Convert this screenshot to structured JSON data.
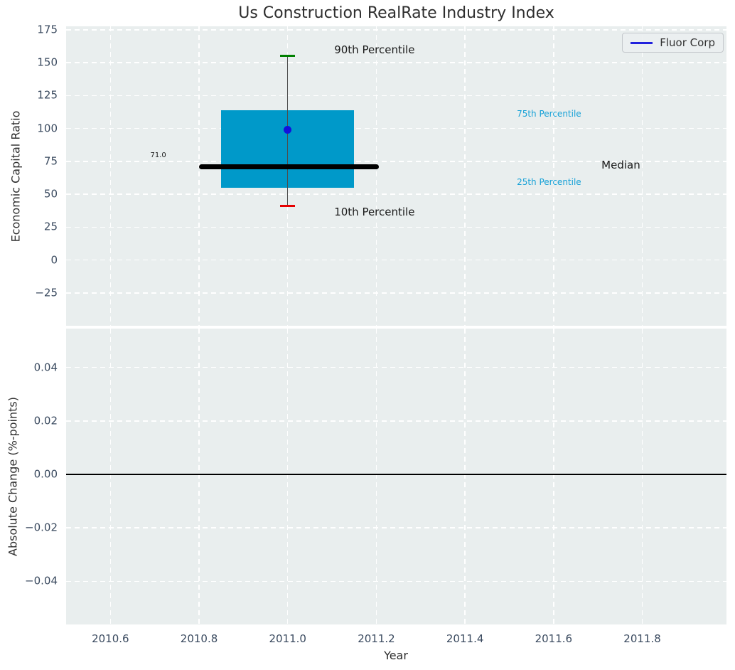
{
  "chart_data": {
    "type": "box",
    "title": "Us Construction RealRate Industry Index",
    "legend": {
      "label": "Fluor Corp",
      "position": "upper right"
    },
    "x_axis": {
      "label": "Year",
      "xlim": [
        2010.5,
        2011.99
      ],
      "tick_values": [
        2010.6,
        2010.8,
        2011.0,
        2011.2,
        2011.4,
        2011.6,
        2011.8
      ],
      "tick_labels": [
        "2010.6",
        "2010.8",
        "2011.0",
        "2011.2",
        "2011.4",
        "2011.6",
        "2011.8"
      ],
      "grid": "white dashed"
    },
    "top_plot": {
      "ylabel": "Economic Capital Ratio",
      "ylim": [
        -50,
        177.7
      ],
      "tick_values": [
        175,
        150,
        125,
        100,
        75,
        50,
        25,
        0,
        -25
      ],
      "tick_labels": [
        "175",
        "150",
        "125",
        "100",
        "75",
        "50",
        "25",
        "0",
        "−25"
      ],
      "box": {
        "x_center": 2011.0,
        "x_left": 2010.85,
        "x_right": 2011.15,
        "p10": 41,
        "p25": 55,
        "median": 71.0,
        "p75": 114,
        "p90": 155,
        "median_label": "71.0",
        "median_line_x": [
          2010.8,
          2011.206
        ]
      },
      "company_point": {
        "name": "Fluor Corp",
        "x": 2011.0,
        "y": 99
      },
      "annotations": [
        {
          "text": "90th Percentile",
          "x": 2011.105,
          "y": 160,
          "color": "#1a1a1a",
          "size": 15
        },
        {
          "text": "10th Percentile",
          "x": 2011.105,
          "y": 36.5,
          "color": "#1a1a1a",
          "size": 15
        },
        {
          "text": "75th Percentile",
          "x": 2011.517,
          "y": 111,
          "color": "#16a1d7",
          "size": 12
        },
        {
          "text": "25th Percentile",
          "x": 2011.517,
          "y": 59,
          "color": "#16a1d7",
          "size": 12
        },
        {
          "text": "Median",
          "x": 2011.708,
          "y": 72,
          "color": "#1a1a1a",
          "size": 15
        },
        {
          "text": "71.0",
          "x": 2010.69,
          "y": 79,
          "color": "#1a1a1a",
          "size": 10
        }
      ]
    },
    "bottom_plot": {
      "ylabel": "Absolute Change (%-points)",
      "ylim": [
        -0.0561,
        0.0545
      ],
      "tick_values": [
        0.04,
        0.02,
        0.0,
        -0.02,
        -0.04
      ],
      "tick_labels": [
        "0.04",
        "0.02",
        "0.00",
        "−0.02",
        "−0.04"
      ],
      "zero_line_y": 0.0,
      "series": []
    },
    "colors": {
      "axes_bg": "#e9eeee",
      "grid": "#ffffff",
      "tick_label": "#3a4a5f",
      "box_fill": "#0099c9",
      "median_line": "#000000",
      "whisker": "#4d4d4d",
      "p90_cap": "#008000",
      "p10_cap": "#e60000",
      "company_point": "#1111dd",
      "legend_line": "#2222dd",
      "percentile_label": "#16a1d7",
      "zero_line": "#000000"
    }
  }
}
